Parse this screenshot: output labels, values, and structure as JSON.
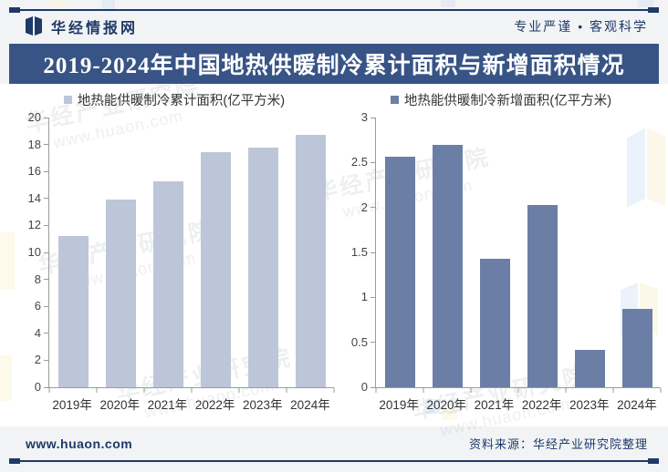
{
  "header": {
    "brand": "华经情报网",
    "tagline": "专业严谨 • 客观科学"
  },
  "title": "2019-2024年中国地热供暖制冷累计面积与新增面积情况",
  "footer": {
    "site": "www.huaon.com",
    "source": "资料来源：华经产业研究院整理"
  },
  "watermark": {
    "line1": "华经产业研究院",
    "line2": "www.huaon.com"
  },
  "colors": {
    "navy": "#1E3A68",
    "titlebar_bg": "#385486",
    "cumulative_bar": "#BDC6D8",
    "new_bar": "#6B7EA6",
    "axis": "#9B9B9B"
  },
  "chart_data": [
    {
      "type": "bar",
      "legend": "地热能供暖制冷累计面积(亿平方米)",
      "categories": [
        "2019年",
        "2020年",
        "2021年",
        "2022年",
        "2023年",
        "2024年"
      ],
      "values": [
        11.2,
        13.9,
        15.3,
        17.4,
        17.8,
        18.7
      ],
      "ylim": [
        0,
        20
      ],
      "ytick": 2,
      "color": "#BDC6D8",
      "grid": false,
      "legend_position": "top"
    },
    {
      "type": "bar",
      "legend": "地热能供暖制冷新增面积(亿平方米)",
      "categories": [
        "2019年",
        "2020年",
        "2021年",
        "2022年",
        "2023年",
        "2024年"
      ],
      "values": [
        2.56,
        2.7,
        1.43,
        2.03,
        0.42,
        0.87
      ],
      "ylim": [
        0,
        3
      ],
      "ytick": 0.5,
      "color": "#6B7EA6",
      "grid": false,
      "legend_position": "top"
    }
  ]
}
